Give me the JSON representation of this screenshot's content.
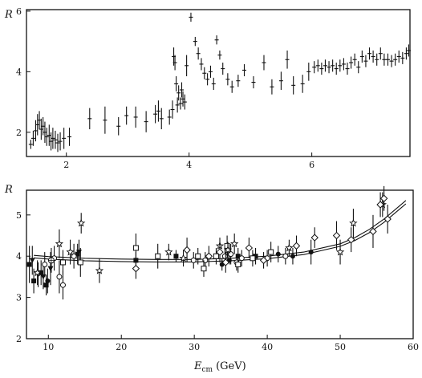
{
  "chart_data": [
    {
      "type": "scatter",
      "title": "",
      "ylabel": "R",
      "xlabel": "",
      "xlim": [
        1.35,
        7.6
      ],
      "ylim": [
        1.2,
        6.05
      ],
      "xticks": [
        2,
        4,
        6
      ],
      "yticks": [
        2,
        4,
        6
      ],
      "grid": false,
      "series": [
        {
          "marker": "dash",
          "points": [
            {
              "x": 1.42,
              "y": 1.6,
              "e": 0.15
            },
            {
              "x": 1.46,
              "y": 1.8,
              "e": 0.25
            },
            {
              "x": 1.5,
              "y": 2.05,
              "e": 0.35
            },
            {
              "x": 1.53,
              "y": 2.25,
              "e": 0.35
            },
            {
              "x": 1.56,
              "y": 2.4,
              "e": 0.3
            },
            {
              "x": 1.59,
              "y": 2.1,
              "e": 0.35
            },
            {
              "x": 1.62,
              "y": 2.2,
              "e": 0.3
            },
            {
              "x": 1.65,
              "y": 2.0,
              "e": 0.35
            },
            {
              "x": 1.68,
              "y": 1.85,
              "e": 0.3
            },
            {
              "x": 1.72,
              "y": 1.9,
              "e": 0.35
            },
            {
              "x": 1.75,
              "y": 1.7,
              "e": 0.3
            },
            {
              "x": 1.78,
              "y": 1.8,
              "e": 0.35
            },
            {
              "x": 1.82,
              "y": 1.75,
              "e": 0.3
            },
            {
              "x": 1.86,
              "y": 1.65,
              "e": 0.3
            },
            {
              "x": 1.9,
              "y": 1.7,
              "e": 0.3
            },
            {
              "x": 1.96,
              "y": 1.8,
              "e": 0.35
            },
            {
              "x": 2.05,
              "y": 1.85,
              "e": 0.3
            },
            {
              "x": 2.38,
              "y": 2.45,
              "e": 0.35
            },
            {
              "x": 2.63,
              "y": 2.4,
              "e": 0.45
            },
            {
              "x": 2.85,
              "y": 2.2,
              "e": 0.3
            },
            {
              "x": 2.98,
              "y": 2.55,
              "e": 0.3
            },
            {
              "x": 3.13,
              "y": 2.5,
              "e": 0.35
            },
            {
              "x": 3.3,
              "y": 2.35,
              "e": 0.35
            },
            {
              "x": 3.45,
              "y": 2.6,
              "e": 0.3
            },
            {
              "x": 3.5,
              "y": 2.7,
              "e": 0.35
            },
            {
              "x": 3.55,
              "y": 2.45,
              "e": 0.35
            },
            {
              "x": 3.68,
              "y": 2.5,
              "e": 0.25
            },
            {
              "x": 3.73,
              "y": 2.75,
              "e": 0.3
            },
            {
              "x": 3.75,
              "y": 4.5,
              "e": 0.3
            },
            {
              "x": 3.77,
              "y": 4.3,
              "e": 0.25
            },
            {
              "x": 3.79,
              "y": 3.6,
              "e": 0.25
            },
            {
              "x": 3.81,
              "y": 2.9,
              "e": 0.25
            },
            {
              "x": 3.83,
              "y": 3.3,
              "e": 0.25
            },
            {
              "x": 3.86,
              "y": 2.95,
              "e": 0.2
            },
            {
              "x": 3.88,
              "y": 3.4,
              "e": 0.25
            },
            {
              "x": 3.9,
              "y": 3.1,
              "e": 0.25
            },
            {
              "x": 3.93,
              "y": 3.0,
              "e": 0.25
            },
            {
              "x": 3.96,
              "y": 4.2,
              "e": 0.35
            },
            {
              "x": 4.03,
              "y": 5.8,
              "e": 0.15
            },
            {
              "x": 4.1,
              "y": 5.0,
              "e": 0.15
            },
            {
              "x": 4.15,
              "y": 4.6,
              "e": 0.2
            },
            {
              "x": 4.2,
              "y": 4.25,
              "e": 0.2
            },
            {
              "x": 4.25,
              "y": 3.95,
              "e": 0.2
            },
            {
              "x": 4.3,
              "y": 3.75,
              "e": 0.2
            },
            {
              "x": 4.35,
              "y": 4.0,
              "e": 0.2
            },
            {
              "x": 4.4,
              "y": 3.6,
              "e": 0.2
            },
            {
              "x": 4.45,
              "y": 5.05,
              "e": 0.15
            },
            {
              "x": 4.5,
              "y": 4.55,
              "e": 0.15
            },
            {
              "x": 4.55,
              "y": 4.1,
              "e": 0.2
            },
            {
              "x": 4.63,
              "y": 3.75,
              "e": 0.2
            },
            {
              "x": 4.7,
              "y": 3.5,
              "e": 0.2
            },
            {
              "x": 4.8,
              "y": 3.7,
              "e": 0.2
            },
            {
              "x": 4.9,
              "y": 4.05,
              "e": 0.2
            },
            {
              "x": 5.05,
              "y": 3.65,
              "e": 0.2
            },
            {
              "x": 5.22,
              "y": 4.3,
              "e": 0.25
            },
            {
              "x": 5.35,
              "y": 3.5,
              "e": 0.25
            },
            {
              "x": 5.5,
              "y": 3.7,
              "e": 0.3
            },
            {
              "x": 5.6,
              "y": 4.4,
              "e": 0.3
            },
            {
              "x": 5.7,
              "y": 3.55,
              "e": 0.3
            },
            {
              "x": 5.85,
              "y": 3.6,
              "e": 0.3
            },
            {
              "x": 5.95,
              "y": 4.0,
              "e": 0.3
            },
            {
              "x": 6.04,
              "y": 4.15,
              "e": 0.2
            },
            {
              "x": 6.1,
              "y": 4.2,
              "e": 0.2
            },
            {
              "x": 6.16,
              "y": 4.1,
              "e": 0.2
            },
            {
              "x": 6.22,
              "y": 4.2,
              "e": 0.2
            },
            {
              "x": 6.28,
              "y": 4.15,
              "e": 0.2
            },
            {
              "x": 6.34,
              "y": 4.2,
              "e": 0.2
            },
            {
              "x": 6.4,
              "y": 4.1,
              "e": 0.2
            },
            {
              "x": 6.46,
              "y": 4.2,
              "e": 0.2
            },
            {
              "x": 6.52,
              "y": 4.25,
              "e": 0.2
            },
            {
              "x": 6.58,
              "y": 4.1,
              "e": 0.2
            },
            {
              "x": 6.64,
              "y": 4.3,
              "e": 0.2
            },
            {
              "x": 6.7,
              "y": 4.4,
              "e": 0.2
            },
            {
              "x": 6.76,
              "y": 4.15,
              "e": 0.2
            },
            {
              "x": 6.82,
              "y": 4.5,
              "e": 0.2
            },
            {
              "x": 6.88,
              "y": 4.35,
              "e": 0.2
            },
            {
              "x": 6.94,
              "y": 4.6,
              "e": 0.2
            },
            {
              "x": 7.0,
              "y": 4.5,
              "e": 0.2
            },
            {
              "x": 7.06,
              "y": 4.4,
              "e": 0.2
            },
            {
              "x": 7.12,
              "y": 4.6,
              "e": 0.2
            },
            {
              "x": 7.18,
              "y": 4.4,
              "e": 0.2
            },
            {
              "x": 7.24,
              "y": 4.4,
              "e": 0.2
            },
            {
              "x": 7.3,
              "y": 4.35,
              "e": 0.2
            },
            {
              "x": 7.36,
              "y": 4.4,
              "e": 0.2
            },
            {
              "x": 7.42,
              "y": 4.5,
              "e": 0.2
            },
            {
              "x": 7.48,
              "y": 4.45,
              "e": 0.2
            },
            {
              "x": 7.54,
              "y": 4.6,
              "e": 0.2
            },
            {
              "x": 7.58,
              "y": 4.7,
              "e": 0.2
            }
          ]
        }
      ]
    },
    {
      "type": "scatter",
      "title": "",
      "ylabel": "R",
      "xlabel": "E",
      "xlabel_subscript": "cm",
      "xlabel_unit": "(GeV)",
      "xlim": [
        7,
        60
      ],
      "ylim": [
        2,
        5.6
      ],
      "xticks": [
        10,
        20,
        30,
        40,
        50,
        60
      ],
      "yticks": [
        2,
        3,
        4,
        5
      ],
      "grid": false,
      "curves": [
        {
          "x": [
            8,
            10,
            15,
            20,
            25,
            30,
            35,
            40,
            45,
            50,
            52,
            54,
            56,
            58,
            59
          ],
          "y": [
            4.02,
            3.99,
            3.95,
            3.93,
            3.92,
            3.92,
            3.95,
            4.0,
            4.1,
            4.3,
            4.45,
            4.65,
            4.9,
            5.2,
            5.35
          ]
        },
        {
          "x": [
            8,
            10,
            15,
            20,
            25,
            30,
            35,
            40,
            45,
            50,
            52,
            54,
            56,
            58,
            59
          ],
          "y": [
            3.96,
            3.93,
            3.89,
            3.87,
            3.86,
            3.86,
            3.89,
            3.94,
            4.04,
            4.24,
            4.38,
            4.57,
            4.82,
            5.12,
            5.27
          ]
        }
      ],
      "series": [
        {
          "marker": "filled-square",
          "points": [
            {
              "x": 7.4,
              "y": 3.8,
              "e": 0.45
            },
            {
              "x": 8.0,
              "y": 3.4,
              "e": 0.3
            },
            {
              "x": 9.0,
              "y": 3.6,
              "e": 0.3
            },
            {
              "x": 9.7,
              "y": 3.3,
              "e": 0.25
            },
            {
              "x": 14.0,
              "y": 4.05,
              "e": 0.25
            },
            {
              "x": 22.0,
              "y": 3.9,
              "e": 0.2
            },
            {
              "x": 27.5,
              "y": 4.0,
              "e": 0.15
            },
            {
              "x": 36.0,
              "y": 4.0,
              "e": 0.2
            },
            {
              "x": 38.4,
              "y": 4.0,
              "e": 0.2
            }
          ]
        },
        {
          "marker": "filled-triangle",
          "points": [
            {
              "x": 7.8,
              "y": 3.9,
              "e": 0.35
            },
            {
              "x": 8.6,
              "y": 3.55,
              "e": 0.3
            },
            {
              "x": 9.3,
              "y": 3.5,
              "e": 0.3
            },
            {
              "x": 10.3,
              "y": 3.7,
              "e": 0.4
            },
            {
              "x": 14.2,
              "y": 4.1,
              "e": 0.3
            }
          ]
        },
        {
          "marker": "filled-circle",
          "points": [
            {
              "x": 9.9,
              "y": 3.4,
              "e": 0.3
            },
            {
              "x": 33.8,
              "y": 3.8,
              "e": 0.15
            },
            {
              "x": 34.8,
              "y": 3.9,
              "e": 0.1
            },
            {
              "x": 41.5,
              "y": 4.05,
              "e": 0.2
            },
            {
              "x": 43.5,
              "y": 4.0,
              "e": 0.2
            },
            {
              "x": 46.0,
              "y": 4.1,
              "e": 0.3
            }
          ]
        },
        {
          "marker": "open-circle",
          "points": [
            {
              "x": 9.5,
              "y": 3.8,
              "e": 0.3
            },
            {
              "x": 10.8,
              "y": 3.95,
              "e": 0.3
            },
            {
              "x": 11.5,
              "y": 3.5,
              "e": 0.4
            },
            {
              "x": 12.0,
              "y": 3.3,
              "e": 0.35
            },
            {
              "x": 13.5,
              "y": 4.0,
              "e": 0.3
            },
            {
              "x": 29.9,
              "y": 3.9,
              "e": 0.2
            },
            {
              "x": 31.5,
              "y": 3.9,
              "e": 0.2
            },
            {
              "x": 34.2,
              "y": 4.0,
              "e": 0.2
            },
            {
              "x": 35.0,
              "y": 4.05,
              "e": 0.25
            },
            {
              "x": 35.8,
              "y": 3.85,
              "e": 0.2
            },
            {
              "x": 36.5,
              "y": 3.95,
              "e": 0.2
            },
            {
              "x": 40.0,
              "y": 3.95,
              "e": 0.2
            },
            {
              "x": 42.5,
              "y": 4.0,
              "e": 0.2
            }
          ]
        },
        {
          "marker": "open-square",
          "points": [
            {
              "x": 12.0,
              "y": 3.85,
              "e": 0.3
            },
            {
              "x": 14.4,
              "y": 3.85,
              "e": 0.35
            },
            {
              "x": 22.0,
              "y": 4.2,
              "e": 0.35
            },
            {
              "x": 25.0,
              "y": 4.0,
              "e": 0.3
            },
            {
              "x": 30.5,
              "y": 4.0,
              "e": 0.2
            },
            {
              "x": 31.3,
              "y": 3.7,
              "e": 0.2
            },
            {
              "x": 33.0,
              "y": 4.0,
              "e": 0.2
            },
            {
              "x": 34.5,
              "y": 4.25,
              "e": 0.25
            },
            {
              "x": 36.0,
              "y": 3.8,
              "e": 0.2
            },
            {
              "x": 38.0,
              "y": 3.95,
              "e": 0.2
            },
            {
              "x": 40.5,
              "y": 4.1,
              "e": 0.25
            }
          ]
        },
        {
          "marker": "open-star",
          "points": [
            {
              "x": 8.5,
              "y": 3.6,
              "e": 0.3
            },
            {
              "x": 11.5,
              "y": 4.3,
              "e": 0.35
            },
            {
              "x": 13.0,
              "y": 4.1,
              "e": 0.3
            },
            {
              "x": 14.5,
              "y": 4.8,
              "e": 0.25
            },
            {
              "x": 17.0,
              "y": 3.65,
              "e": 0.3
            },
            {
              "x": 26.5,
              "y": 4.1,
              "e": 0.2
            },
            {
              "x": 28.5,
              "y": 3.95,
              "e": 0.2
            },
            {
              "x": 33.5,
              "y": 4.25,
              "e": 0.2
            },
            {
              "x": 34.6,
              "y": 4.15,
              "e": 0.2
            },
            {
              "x": 35.5,
              "y": 4.3,
              "e": 0.25
            },
            {
              "x": 43.0,
              "y": 4.2,
              "e": 0.2
            },
            {
              "x": 50.0,
              "y": 4.1,
              "e": 0.3
            },
            {
              "x": 51.8,
              "y": 4.8,
              "e": 0.35
            },
            {
              "x": 55.8,
              "y": 5.25,
              "e": 0.3
            }
          ]
        },
        {
          "marker": "open-diamond",
          "points": [
            {
              "x": 22.0,
              "y": 3.7,
              "e": 0.25
            },
            {
              "x": 29.0,
              "y": 4.15,
              "e": 0.3
            },
            {
              "x": 32.0,
              "y": 4.0,
              "e": 0.25
            },
            {
              "x": 33.5,
              "y": 4.1,
              "e": 0.25
            },
            {
              "x": 34.3,
              "y": 3.85,
              "e": 0.25
            },
            {
              "x": 37.5,
              "y": 4.2,
              "e": 0.25
            },
            {
              "x": 39.5,
              "y": 3.9,
              "e": 0.2
            },
            {
              "x": 44.0,
              "y": 4.25,
              "e": 0.25
            },
            {
              "x": 46.5,
              "y": 4.45,
              "e": 0.25
            },
            {
              "x": 49.5,
              "y": 4.5,
              "e": 0.35
            },
            {
              "x": 51.5,
              "y": 4.4,
              "e": 0.3
            },
            {
              "x": 54.5,
              "y": 4.6,
              "e": 0.4
            },
            {
              "x": 55.5,
              "y": 5.25,
              "e": 0.3
            },
            {
              "x": 56.0,
              "y": 5.4,
              "e": 0.3
            },
            {
              "x": 56.5,
              "y": 4.9,
              "e": 0.35
            }
          ]
        },
        {
          "marker": "crossed-circle",
          "points": [
            {
              "x": 10.4,
              "y": 3.9,
              "e": 0.3
            }
          ]
        }
      ]
    }
  ]
}
